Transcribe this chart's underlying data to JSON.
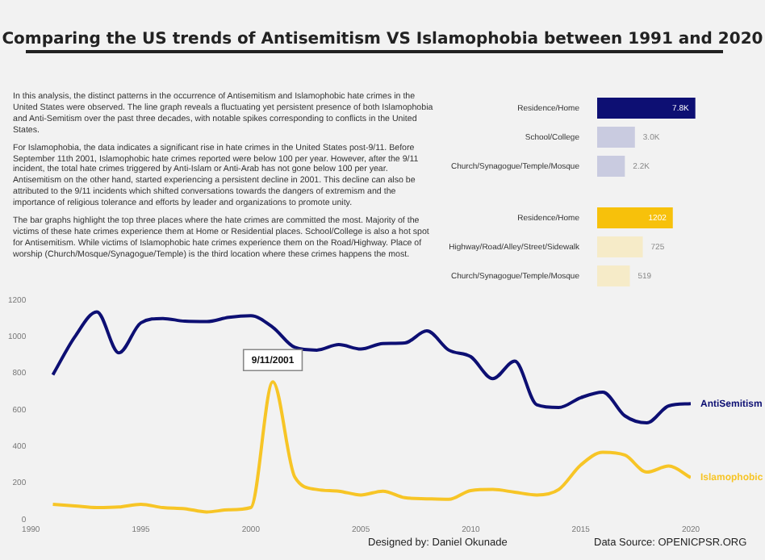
{
  "chart_data": [
    {
      "type": "other",
      "title": "Comparing the US trends of Antisemitism VS Islamophobia between 1991 and 2020",
      "annotations": [
        "In this analysis, the distinct patterns in the occurrence of Antisemitism and Islamophobic hate crimes in the United States were observed. The line graph reveals a fluctuating yet persistent presence of both Islamophobia and Anti-Semitism over the past three decades, with notable spikes corresponding to conflicts in the United States.",
        "For Islamophobia, the data indicates a significant rise in hate crimes in the United States post-9/11. Before September 11th 2001, Islamophobic hate crimes reported were below 100 per year. However, after the 9/11 incident, the total hate crimes triggered by Anti-Islam or Anti-Arab has not gone below 100 per year. Antisemitism on the other hand, started experiencing a persistent decline in 2001. This  decline can also be attributed to the 9/11 incidents which shifted conversations towards the dangers of extremism and the importance of religious tolerance and efforts by leader and organizations to promote unity.",
        "The bar graphs highlight the top three places where the hate crimes are committed the most. Majority of the victims of these hate crimes experience them at Home or Residential places. School/College is also a hot spot for Antisemitism. While victims of Islamophobic hate crimes experience them on the Road/Highway. Place of worship (Church/Mosque/Synagogue/Temple) is the third location where these crimes happens the most."
      ]
    },
    {
      "type": "bar",
      "orientation": "horizontal",
      "categories": [
        "Residence/Home",
        "School/College",
        "Church/Synagogue/Temple/Mosque"
      ],
      "values": [
        7.8,
        3.0,
        2.2
      ],
      "value_labels": [
        "7.8K",
        "3.0K",
        "2.2K"
      ],
      "colors": [
        "#0d0f73",
        "#c9cbe0",
        "#c9cbe0"
      ],
      "legend": false,
      "grid": false,
      "tick_labels": "y"
    },
    {
      "type": "bar",
      "orientation": "horizontal",
      "categories": [
        "Residence/Home",
        "Highway/Road/Alley/Street/Sidewalk",
        "Church/Synagogue/Temple/Mosque"
      ],
      "values": [
        1202,
        725,
        519
      ],
      "value_labels": [
        "1202",
        "725",
        "519"
      ],
      "colors": [
        "#f7c10b",
        "#f6ebc8",
        "#f6ebc8"
      ],
      "legend": false,
      "grid": false,
      "tick_labels": "y"
    },
    {
      "type": "line",
      "x": [
        1991,
        1992,
        1993,
        1994,
        1995,
        1996,
        1997,
        1998,
        1999,
        2000,
        2001,
        2002,
        2003,
        2004,
        2005,
        2006,
        2007,
        2008,
        2009,
        2010,
        2011,
        2012,
        2013,
        2014,
        2015,
        2016,
        2017,
        2018,
        2019,
        2020
      ],
      "series": [
        {
          "name": "AntiSemitism",
          "color": "#0d0f73",
          "values": [
            792,
            1000,
            1136,
            912,
            1076,
            1100,
            1085,
            1083,
            1106,
            1115,
            1052,
            942,
            927,
            957,
            933,
            963,
            966,
            1032,
            927,
            891,
            771,
            867,
            628,
            613,
            667,
            697,
            568,
            529,
            622,
            634
          ]
        },
        {
          "name": "Islamophobic",
          "color": "#f7c526",
          "values": [
            84,
            75,
            66,
            69,
            84,
            66,
            60,
            42,
            54,
            66,
            753,
            233,
            165,
            156,
            135,
            156,
            120,
            114,
            111,
            159,
            165,
            150,
            135,
            165,
            299,
            368,
            353,
            260,
            293,
            230
          ]
        }
      ],
      "xlim": [
        1990,
        2020
      ],
      "xticks": [
        1990,
        1995,
        2000,
        2005,
        2010,
        2015,
        2020
      ],
      "ylim": [
        0,
        1200
      ],
      "yticks": [
        0,
        200,
        400,
        600,
        800,
        1000,
        1200
      ],
      "grid": false,
      "legend": false,
      "marker": "none",
      "annotations": [
        {
          "text": "9/11/2001",
          "x": 2001,
          "y": 753
        },
        "Designed by: Daniel Okunade",
        "Data Source: OPENICPSR.ORG"
      ]
    }
  ]
}
